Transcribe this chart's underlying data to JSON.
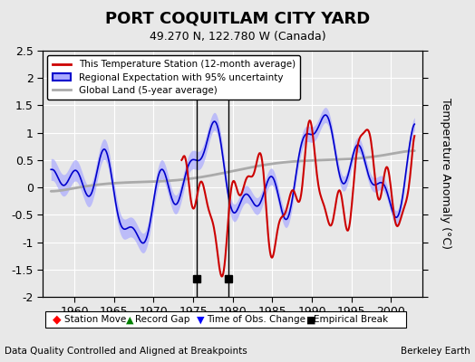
{
  "title": "PORT COQUITLAM CITY YARD",
  "subtitle": "49.270 N, 122.780 W (Canada)",
  "ylabel": "Temperature Anomaly (°C)",
  "xlabel_bottom_left": "Data Quality Controlled and Aligned at Breakpoints",
  "xlabel_bottom_right": "Berkeley Earth",
  "xlim": [
    1956,
    2004
  ],
  "ylim": [
    -2.0,
    2.5
  ],
  "yticks": [
    -2.0,
    -1.5,
    -1.0,
    -0.5,
    0.0,
    0.5,
    1.0,
    1.5,
    2.0,
    2.5
  ],
  "xticks": [
    1960,
    1965,
    1970,
    1975,
    1980,
    1985,
    1990,
    1995,
    2000
  ],
  "bg_color": "#e8e8e8",
  "plot_bg_color": "#e8e8e8",
  "empirical_break_years": [
    1975.5,
    1979.5
  ],
  "time_obs_change_years": [],
  "record_gap_years": [],
  "station_move_years": [],
  "legend_labels": [
    "This Temperature Station (12-month average)",
    "Regional Expectation with 95% uncertainty",
    "Global Land (5-year average)"
  ],
  "red_line_color": "#cc0000",
  "blue_line_color": "#0000cc",
  "blue_fill_color": "#aaaaff",
  "gray_line_color": "#aaaaaa",
  "grid_color": "#ffffff"
}
